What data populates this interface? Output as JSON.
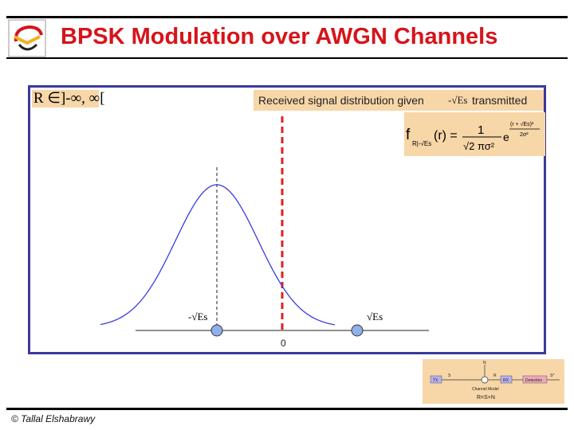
{
  "slide": {
    "title": "BPSK Modulation over AWGN Channels",
    "copyright": "© Tallal Elshabrawy"
  },
  "domain_label": "R ∈]-∞, ∞[",
  "distribution": {
    "title_prefix": "Received signal distribution given",
    "symbol": "-√Es",
    "title_suffix": "transmitted",
    "formula": {
      "lhs": "f",
      "subscript": "R|-√Es",
      "arg": "(r) =",
      "numerator": "1",
      "denominator": "√2 πσ²",
      "exp_base": "e",
      "exponent_num": "(r + √Es)²",
      "exponent_den": "2σ²"
    }
  },
  "chart": {
    "origin_label": "0",
    "neg_point_label": "-√Es",
    "pos_point_label": "√Es",
    "colors": {
      "curve": "#3b3be0",
      "threshold": "#e02020",
      "point": "#8fb0e8"
    }
  },
  "channel_model": {
    "n_label": "N",
    "s_label": "S",
    "r_label": "R",
    "s_hat_label": "S*",
    "tx": "TX",
    "rx": "RX",
    "detection": "Detection",
    "caption": "Channel Model",
    "equation": "R=S+N"
  },
  "logo": {
    "icon": "university-logo"
  }
}
